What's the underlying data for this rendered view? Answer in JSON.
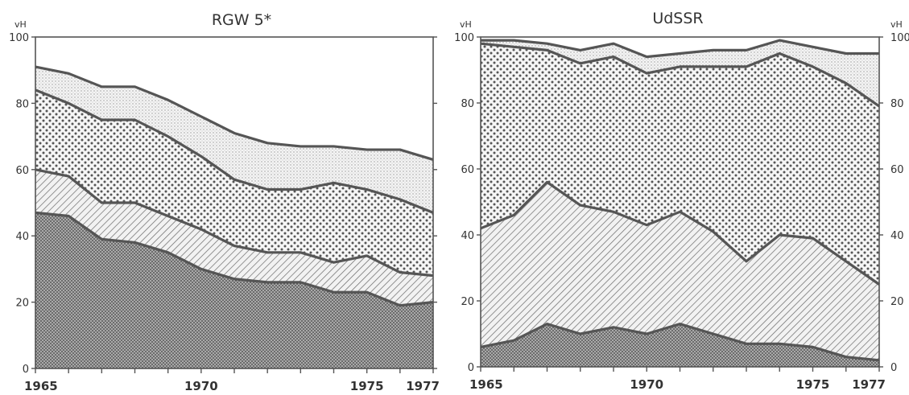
{
  "colors": {
    "ink": "#555555",
    "bg": "#ffffff"
  },
  "chart_data": [
    {
      "type": "area",
      "stacked": true,
      "title": "RGW 5*",
      "unit_label": "vH",
      "xlim": [
        1965,
        1977
      ],
      "ylim": [
        0,
        100
      ],
      "x_tick_labels": [
        "1965",
        "1970",
        "1975",
        "1977"
      ],
      "x_tick_values": [
        1965,
        1970,
        1975,
        1977
      ],
      "y_tick_labels": [
        "0",
        "20",
        "40",
        "60",
        "80",
        "100"
      ],
      "y_tick_values": [
        0,
        20,
        40,
        60,
        80,
        100
      ],
      "x": [
        1965,
        1966,
        1967,
        1968,
        1969,
        1970,
        1971,
        1972,
        1973,
        1974,
        1975,
        1976,
        1977
      ],
      "cumulative_boundaries": [
        [
          47,
          46,
          39,
          38,
          35,
          30,
          27,
          26,
          26,
          23,
          23,
          19,
          20
        ],
        [
          60,
          58,
          50,
          50,
          46,
          42,
          37,
          35,
          35,
          32,
          34,
          29,
          28
        ],
        [
          84,
          80,
          75,
          75,
          70,
          64,
          57,
          54,
          54,
          56,
          54,
          51,
          47
        ],
        [
          91,
          89,
          85,
          85,
          81,
          76,
          71,
          68,
          67,
          67,
          66,
          66,
          63
        ]
      ]
    },
    {
      "type": "area",
      "stacked": true,
      "title": "UdSSR",
      "unit_label": "vH",
      "xlim": [
        1965,
        1977
      ],
      "ylim": [
        0,
        100
      ],
      "x_tick_labels": [
        "1965",
        "1970",
        "1975",
        "1977"
      ],
      "x_tick_values": [
        1965,
        1970,
        1975,
        1977
      ],
      "y_tick_labels": [
        "0",
        "20",
        "40",
        "60",
        "80",
        "100"
      ],
      "y_tick_values": [
        0,
        20,
        40,
        60,
        80,
        100
      ],
      "x": [
        1965,
        1966,
        1967,
        1968,
        1969,
        1970,
        1971,
        1972,
        1973,
        1974,
        1975,
        1976,
        1977
      ],
      "cumulative_boundaries": [
        [
          6,
          8,
          13,
          10,
          12,
          10,
          13,
          10,
          7,
          7,
          6,
          3,
          2
        ],
        [
          42,
          46,
          56,
          49,
          47,
          43,
          47,
          41,
          32,
          40,
          39,
          32,
          25
        ],
        [
          98,
          97,
          96,
          92,
          94,
          89,
          91,
          91,
          91,
          95,
          91,
          86,
          79
        ],
        [
          99,
          99,
          98,
          96,
          98,
          94,
          95,
          96,
          96,
          99,
          97,
          95,
          95
        ]
      ]
    }
  ]
}
